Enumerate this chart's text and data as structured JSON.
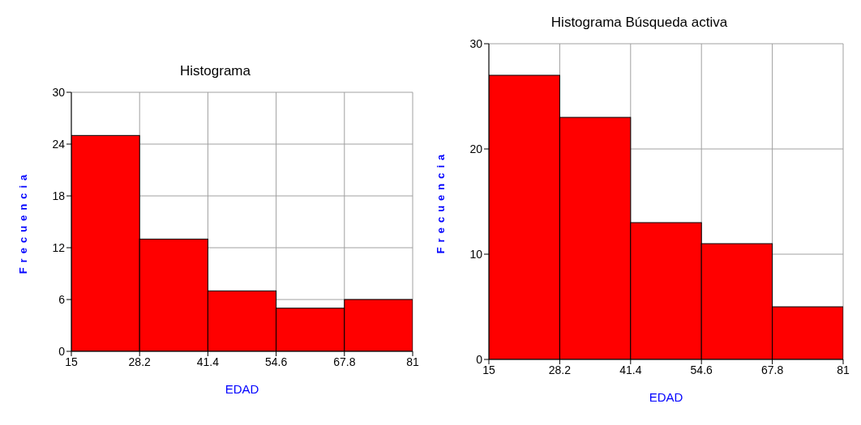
{
  "chart_data": [
    {
      "type": "histogram",
      "title": "Histograma",
      "xlabel": "EDAD",
      "ylabel": "Frecuencia",
      "bins": [
        15,
        28.2,
        41.4,
        54.6,
        67.8,
        81
      ],
      "values": [
        25,
        13,
        7,
        5,
        6
      ],
      "color": "#ff0000",
      "xlim": [
        15,
        81
      ],
      "xticks": [
        15,
        28.2,
        41.4,
        54.6,
        67.8,
        81
      ],
      "ylim": [
        0,
        30
      ],
      "yticks": [
        0,
        6,
        12,
        18,
        24,
        30
      ],
      "grid": true
    },
    {
      "type": "histogram",
      "title": "Histograma  Búsqueda activa",
      "xlabel": "EDAD",
      "ylabel": "Frecuencia",
      "bins": [
        15,
        28.2,
        41.4,
        54.6,
        67.8,
        81
      ],
      "values": [
        27,
        23,
        13,
        11,
        5
      ],
      "color": "#ff0000",
      "xlim": [
        15,
        81
      ],
      "xticks": [
        15,
        28.2,
        41.4,
        54.6,
        67.8,
        81
      ],
      "ylim": [
        0,
        30
      ],
      "yticks": [
        0,
        10,
        20,
        30
      ],
      "grid": true
    }
  ]
}
